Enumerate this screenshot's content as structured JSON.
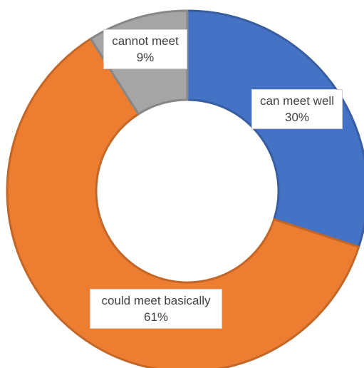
{
  "chart_data": {
    "type": "donut",
    "slices": [
      {
        "label": "can meet well",
        "value": 30,
        "value_label": "30%",
        "color": "#4472C4"
      },
      {
        "label": "could meet basically",
        "value": 61,
        "value_label": "61%",
        "color": "#ED7D31"
      },
      {
        "label": "cannot meet",
        "value": 9,
        "value_label": "9%",
        "color": "#A5A5A5"
      }
    ],
    "start_angle": "12 o'clock",
    "direction": "clockwise",
    "legend": "none"
  }
}
